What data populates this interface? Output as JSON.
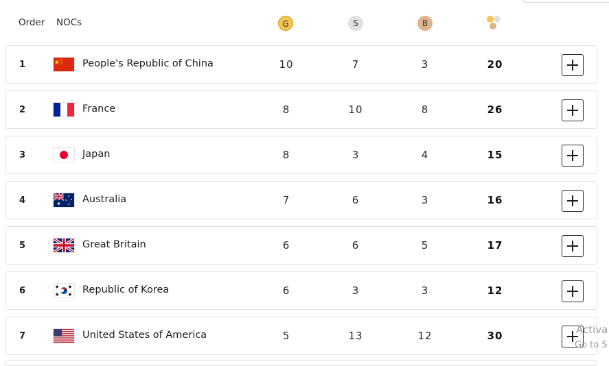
{
  "header": {
    "order_label": "Order",
    "nocs_label": "NOCs",
    "gold_label": "G",
    "silver_label": "S",
    "bronze_label": "B",
    "total_icon": "medals-total-icon"
  },
  "colors": {
    "gold": "#f5c451",
    "silver": "#e0e0e0",
    "bronze": "#ddb48b"
  },
  "rows": [
    {
      "order": "1",
      "noc": "People's Republic of China",
      "flag": "china-flag-icon",
      "gold": "10",
      "silver": "7",
      "bronze": "3",
      "total": "20"
    },
    {
      "order": "2",
      "noc": "France",
      "flag": "france-flag-icon",
      "gold": "8",
      "silver": "10",
      "bronze": "8",
      "total": "26"
    },
    {
      "order": "3",
      "noc": "Japan",
      "flag": "japan-flag-icon",
      "gold": "8",
      "silver": "3",
      "bronze": "4",
      "total": "15"
    },
    {
      "order": "4",
      "noc": "Australia",
      "flag": "australia-flag-icon",
      "gold": "7",
      "silver": "6",
      "bronze": "3",
      "total": "16"
    },
    {
      "order": "5",
      "noc": "Great Britain",
      "flag": "great-britain-flag-icon",
      "gold": "6",
      "silver": "6",
      "bronze": "5",
      "total": "17"
    },
    {
      "order": "6",
      "noc": "Republic of Korea",
      "flag": "korea-flag-icon",
      "gold": "6",
      "silver": "3",
      "bronze": "3",
      "total": "12"
    },
    {
      "order": "7",
      "noc": "United States of America",
      "flag": "usa-flag-icon",
      "gold": "5",
      "silver": "13",
      "bronze": "12",
      "total": "30"
    }
  ],
  "expand_icon": "plus-icon",
  "watermark": {
    "line1": "Activa",
    "line2": "Go to S"
  }
}
